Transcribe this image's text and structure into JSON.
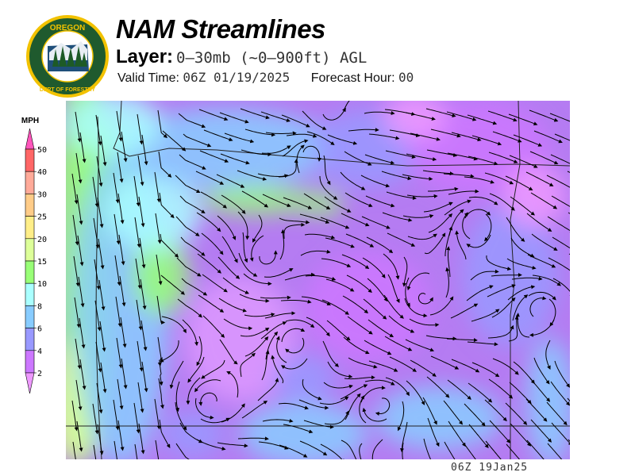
{
  "logo": {
    "text_top": "OREGON",
    "text_bottom": "DEPARTMENT OF FORESTRY",
    "colors": {
      "ring": "#f2c200",
      "field": "#1f5a2e"
    }
  },
  "header": {
    "title": "NAM Streamlines",
    "layer_label": "Layer:",
    "layer_value": "0–30mb (~0–900ft) AGL",
    "valid_label": "Valid Time:",
    "valid_value": "06Z 01/19/2025",
    "forecast_label": "Forecast Hour:",
    "forecast_value": "00"
  },
  "legend": {
    "unit": "MPH",
    "ticks": [
      "50",
      "40",
      "30",
      "25",
      "20",
      "15",
      "10",
      "8",
      "6",
      "4",
      "2"
    ],
    "over_color": "#ff55bb",
    "under_color": "#ee99ff",
    "bins": [
      {
        "range": "40-50",
        "color": "#ff6666"
      },
      {
        "range": "30-40",
        "color": "#ffaa99"
      },
      {
        "range": "25-30",
        "color": "#ffcc88"
      },
      {
        "range": "20-25",
        "color": "#ffee88"
      },
      {
        "range": "15-20",
        "color": "#ddff99"
      },
      {
        "range": "10-15",
        "color": "#99ff77"
      },
      {
        "range": "8-10",
        "color": "#aaffff"
      },
      {
        "range": "6-8",
        "color": "#88ccff"
      },
      {
        "range": "4-6",
        "color": "#9999ff"
      },
      {
        "range": "2-4",
        "color": "#cc77ff"
      }
    ]
  },
  "map": {
    "region": "Oregon",
    "streamline_color": "#000000",
    "border_color": "#222222"
  },
  "footer": {
    "stamp": "06Z 19Jan25"
  }
}
